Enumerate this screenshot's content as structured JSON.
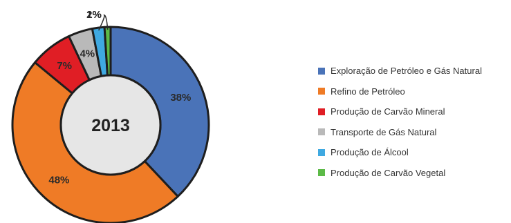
{
  "chart_data": {
    "type": "pie",
    "donut": true,
    "center_label": "2013",
    "legend_position": "right",
    "slices": [
      {
        "label": "Exploração de Petróleo e Gás Natural",
        "value": 38,
        "value_label": "38%",
        "color": "#4a73b8"
      },
      {
        "label": "Refino de Petróleo",
        "value": 48,
        "value_label": "48%",
        "color": "#ef7b26"
      },
      {
        "label": "Produção de Carvão Mineral",
        "value": 7,
        "value_label": "7%",
        "color": "#e01e25"
      },
      {
        "label": "Transporte de Gás Natural",
        "value": 4,
        "value_label": "4%",
        "color": "#b9b9b9"
      },
      {
        "label": "Produção de Álcool",
        "value": 2,
        "value_label": "2%",
        "color": "#3fa9e1"
      },
      {
        "label": "Produção de Carvão Vegetal",
        "value": 1,
        "value_label": "1%",
        "color": "#5cba47"
      }
    ]
  }
}
